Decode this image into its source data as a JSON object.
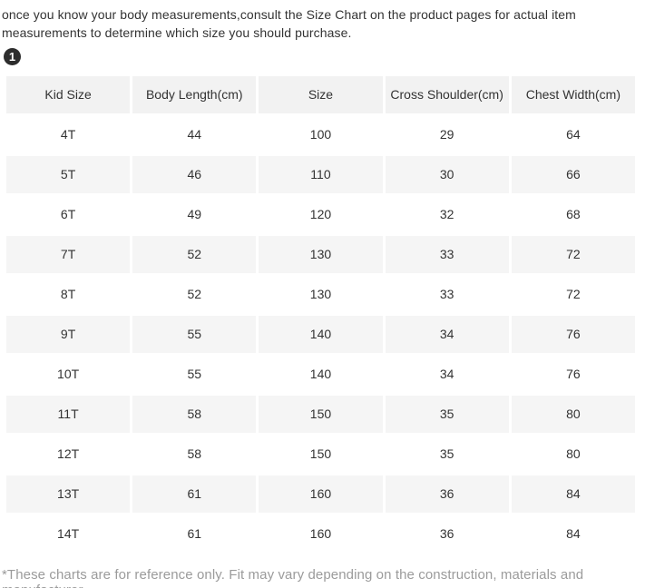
{
  "intro": "once you know your body measurements,consult the Size Chart on the product pages for actual item measurements to determine which size you should purchase.",
  "badge": "1",
  "table": {
    "columns": [
      "Kid Size",
      "Body Length(cm)",
      "Size",
      "Cross Shoulder(cm)",
      "Chest Width(cm)"
    ],
    "rows": [
      [
        "4T",
        "44",
        "100",
        "29",
        "64"
      ],
      [
        "5T",
        "46",
        "110",
        "30",
        "66"
      ],
      [
        "6T",
        "49",
        "120",
        "32",
        "68"
      ],
      [
        "7T",
        "52",
        "130",
        "33",
        "72"
      ],
      [
        "8T",
        "52",
        "130",
        "33",
        "72"
      ],
      [
        "9T",
        "55",
        "140",
        "34",
        "76"
      ],
      [
        "10T",
        "55",
        "140",
        "34",
        "76"
      ],
      [
        "11T",
        "58",
        "150",
        "35",
        "80"
      ],
      [
        "12T",
        "58",
        "150",
        "35",
        "80"
      ],
      [
        "13T",
        "61",
        "160",
        "36",
        "84"
      ],
      [
        "14T",
        "61",
        "160",
        "36",
        "84"
      ]
    ]
  },
  "footnote": "*These charts are for reference only. Fit may vary depending on the construction, materials and manufacturer.",
  "colors": {
    "stripe": "#f5f5f5",
    "header_bg": "#f2f2f2",
    "text": "#333333",
    "muted_text": "#9b9b9b",
    "badge_bg": "#2d2d2d"
  }
}
